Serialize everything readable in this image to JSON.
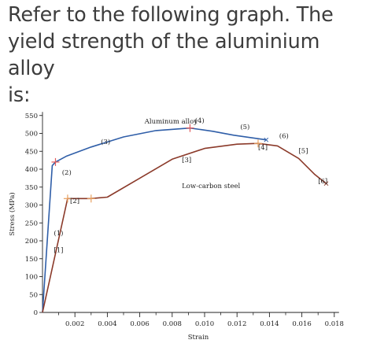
{
  "question": {
    "line1": "Refer to the following graph. The",
    "line2": "yield strength of the aluminium alloy",
    "line3": "is:"
  },
  "chart_data": {
    "type": "line",
    "xlabel": "Strain",
    "ylabel": "Stress (MPa)",
    "xlim": [
      0,
      0.018
    ],
    "ylim": [
      0,
      560
    ],
    "x_ticks": [
      "0.002",
      "0.004",
      "0.006",
      "0.008",
      "0.010",
      "0.012",
      "0.014",
      "0.016",
      "0.018"
    ],
    "y_ticks": [
      "0",
      "50",
      "100",
      "150",
      "200",
      "250",
      "300",
      "350",
      "400",
      "450",
      "500",
      "550"
    ],
    "grid": false,
    "series": [
      {
        "name": "Aluminum alloy",
        "color": "#2f5ea8",
        "points": [
          [
            0,
            0
          ],
          [
            0.0006,
            410
          ],
          [
            0.0008,
            420
          ],
          [
            0.0015,
            437
          ],
          [
            0.003,
            462
          ],
          [
            0.005,
            490
          ],
          [
            0.007,
            508
          ],
          [
            0.0091,
            515
          ],
          [
            0.0105,
            506
          ],
          [
            0.0118,
            495
          ],
          [
            0.0138,
            482
          ]
        ]
      },
      {
        "name": "Low-carbon steel",
        "color": "#8b3a2a",
        "points": [
          [
            0,
            0
          ],
          [
            0.00155,
            318
          ],
          [
            0.003,
            318
          ],
          [
            0.004,
            322
          ],
          [
            0.006,
            375
          ],
          [
            0.008,
            428
          ],
          [
            0.01,
            458
          ],
          [
            0.012,
            470
          ],
          [
            0.0133,
            472
          ],
          [
            0.0145,
            465
          ],
          [
            0.0158,
            430
          ],
          [
            0.0168,
            385
          ],
          [
            0.0175,
            360
          ]
        ]
      }
    ],
    "annotations": [
      {
        "text": "(1)",
        "x": 0.0007,
        "y": 215
      },
      {
        "text": "(2)",
        "x": 0.0012,
        "y": 385
      },
      {
        "text": "(3)",
        "x": 0.0036,
        "y": 470
      },
      {
        "text": "(4)",
        "x": 0.0094,
        "y": 530
      },
      {
        "text": "(5)",
        "x": 0.0122,
        "y": 512
      },
      {
        "text": "(6)",
        "x": 0.0146,
        "y": 487
      },
      {
        "text": "[1]",
        "x": 0.0007,
        "y": 168
      },
      {
        "text": "[2]",
        "x": 0.0017,
        "y": 305
      },
      {
        "text": "[3]",
        "x": 0.0086,
        "y": 420
      },
      {
        "text": "[4]",
        "x": 0.0133,
        "y": 455
      },
      {
        "text": "[5]",
        "x": 0.0158,
        "y": 445
      },
      {
        "text": "[6]",
        "x": 0.017,
        "y": 360
      },
      {
        "text": "Aluminum alloy",
        "x": 0.0063,
        "y": 527
      },
      {
        "text": "Low-carbon steel",
        "x": 0.0086,
        "y": 347
      }
    ],
    "markers": [
      {
        "color": "#e05a5a",
        "x": 0.0008,
        "y": 420
      },
      {
        "color": "#e05a5a",
        "x": 0.0091,
        "y": 515
      },
      {
        "color": "#e8a060",
        "x": 0.00155,
        "y": 318
      },
      {
        "color": "#e8a060",
        "x": 0.003,
        "y": 318
      },
      {
        "color": "#e8a060",
        "x": 0.0133,
        "y": 472
      }
    ]
  }
}
